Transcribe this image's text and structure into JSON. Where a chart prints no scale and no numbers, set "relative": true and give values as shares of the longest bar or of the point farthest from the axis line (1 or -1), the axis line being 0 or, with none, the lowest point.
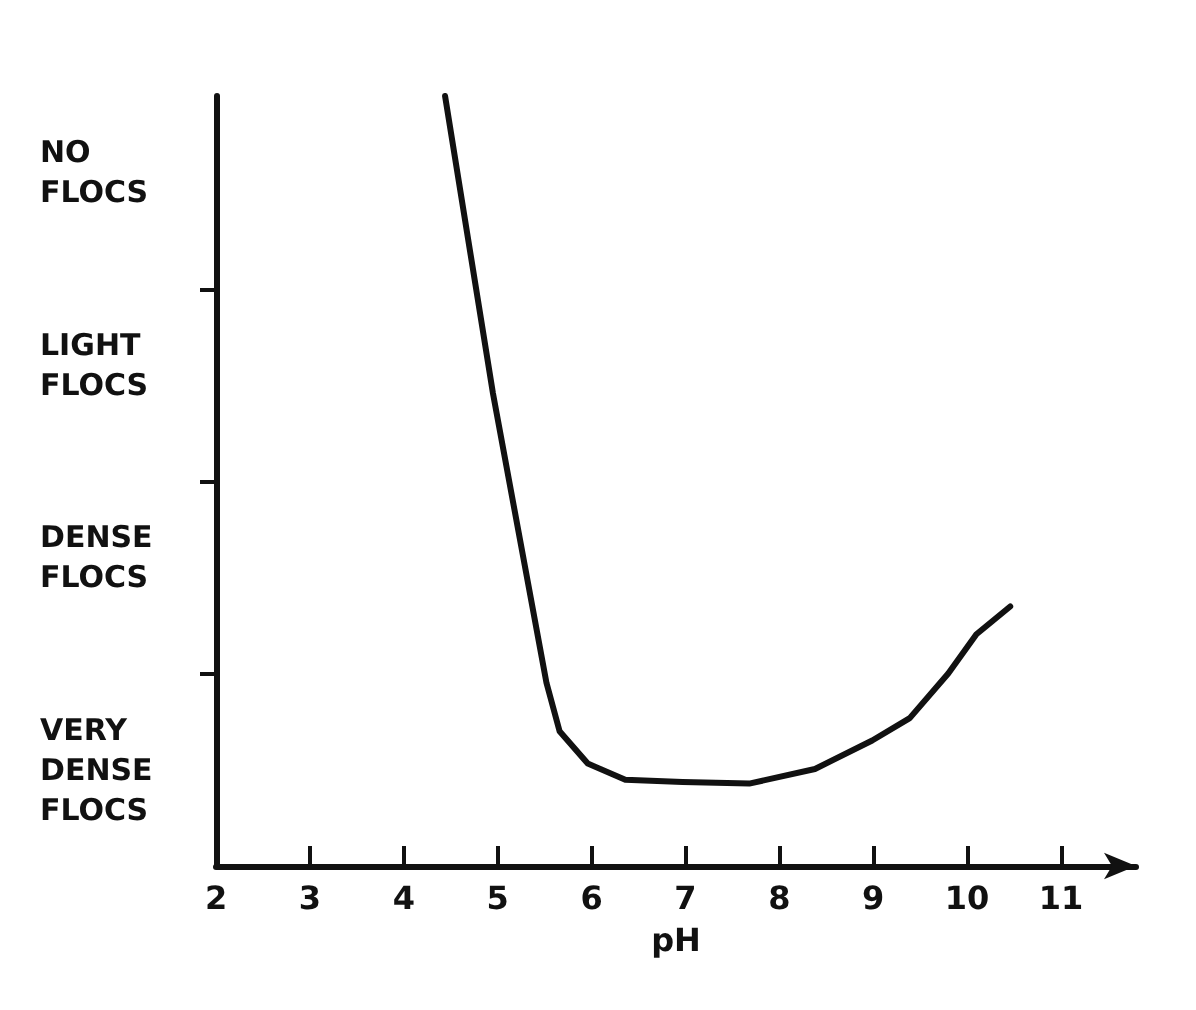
{
  "chart_data": {
    "type": "line",
    "xlabel": "pH",
    "relative": true,
    "x": [
      4.44,
      4.95,
      5.52,
      5.66,
      5.96,
      6.36,
      6.97,
      7.68,
      8.38,
      8.99,
      9.39,
      9.8,
      10.1,
      10.46
    ],
    "series": [
      {
        "color": "#111111",
        "values": [
          1,
          0.614,
          0.238,
          0.175,
          0.133,
          0.112,
          0.109,
          0.107,
          0.126,
          0.163,
          0.192,
          0.25,
          0.301,
          0.337
        ]
      }
    ],
    "xlim": [
      2,
      11.8
    ],
    "xticks": [
      2,
      3,
      4,
      5,
      6,
      7,
      8,
      9,
      10,
      11
    ],
    "annotations": [
      "NO FLOCS",
      "LIGHT FLOCS",
      "DENSE FLOCS",
      "VERY DENSE FLOCS"
    ],
    "grid": false,
    "marker": "none",
    "line_style": "solid"
  }
}
